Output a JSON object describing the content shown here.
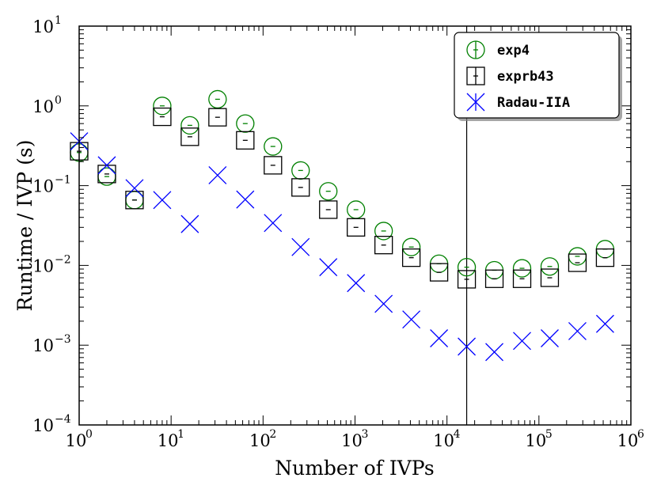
{
  "chart_data": {
    "type": "scatter",
    "title": "",
    "xlabel": "Number of IVPs",
    "ylabel": "Runtime / IVP (s)",
    "xscale": "log",
    "yscale": "log",
    "xlim": [
      1,
      1000000
    ],
    "ylim": [
      0.0001,
      10
    ],
    "x_ticks": [
      {
        "base": "10",
        "exp": "0"
      },
      {
        "base": "10",
        "exp": "1"
      },
      {
        "base": "10",
        "exp": "2"
      },
      {
        "base": "10",
        "exp": "3"
      },
      {
        "base": "10",
        "exp": "4"
      },
      {
        "base": "10",
        "exp": "5"
      },
      {
        "base": "10",
        "exp": "6"
      }
    ],
    "y_ticks": [
      {
        "base": "10",
        "exp": "−4"
      },
      {
        "base": "10",
        "exp": "−3"
      },
      {
        "base": "10",
        "exp": "−2"
      },
      {
        "base": "10",
        "exp": "−1"
      },
      {
        "base": "10",
        "exp": "0"
      },
      {
        "base": "10",
        "exp": "1"
      }
    ],
    "vertical_line_x": 16384,
    "legend_position": "top-right",
    "series": [
      {
        "name": "exp4",
        "marker": "circle",
        "color": "#008000",
        "x": [
          1,
          2,
          4,
          8,
          16,
          32,
          64,
          128,
          256,
          512,
          1024,
          2048,
          4096,
          8192,
          16384,
          32768,
          65536,
          131072,
          262144,
          524288
        ],
        "y": [
          0.26,
          0.13,
          0.066,
          1.0,
          0.57,
          1.21,
          0.6,
          0.31,
          0.155,
          0.085,
          0.05,
          0.027,
          0.017,
          0.0105,
          0.0095,
          0.0087,
          0.0092,
          0.0097,
          0.013,
          0.016
        ]
      },
      {
        "name": "exprb43",
        "marker": "square",
        "color": "#000000",
        "x": [
          1,
          2,
          4,
          8,
          16,
          32,
          64,
          128,
          256,
          512,
          1024,
          2048,
          4096,
          8192,
          16384,
          32768,
          65536,
          131072,
          262144,
          524288
        ],
        "y": [
          0.27,
          0.14,
          0.066,
          0.73,
          0.41,
          0.72,
          0.37,
          0.18,
          0.095,
          0.05,
          0.03,
          0.018,
          0.0125,
          0.0082,
          0.0067,
          0.0068,
          0.0068,
          0.007,
          0.0108,
          0.0125
        ]
      },
      {
        "name": "Radau-IIA",
        "marker": "x",
        "color": "#0000ff",
        "x": [
          1,
          2,
          4,
          8,
          16,
          32,
          64,
          128,
          256,
          512,
          1024,
          2048,
          4096,
          8192,
          16384,
          32768,
          65536,
          131072,
          262144,
          524288
        ],
        "y": [
          0.36,
          0.18,
          0.093,
          0.066,
          0.033,
          0.135,
          0.067,
          0.034,
          0.017,
          0.0095,
          0.006,
          0.0033,
          0.0021,
          0.00122,
          0.00096,
          0.00082,
          0.00113,
          0.00122,
          0.0015,
          0.00185
        ]
      }
    ]
  }
}
